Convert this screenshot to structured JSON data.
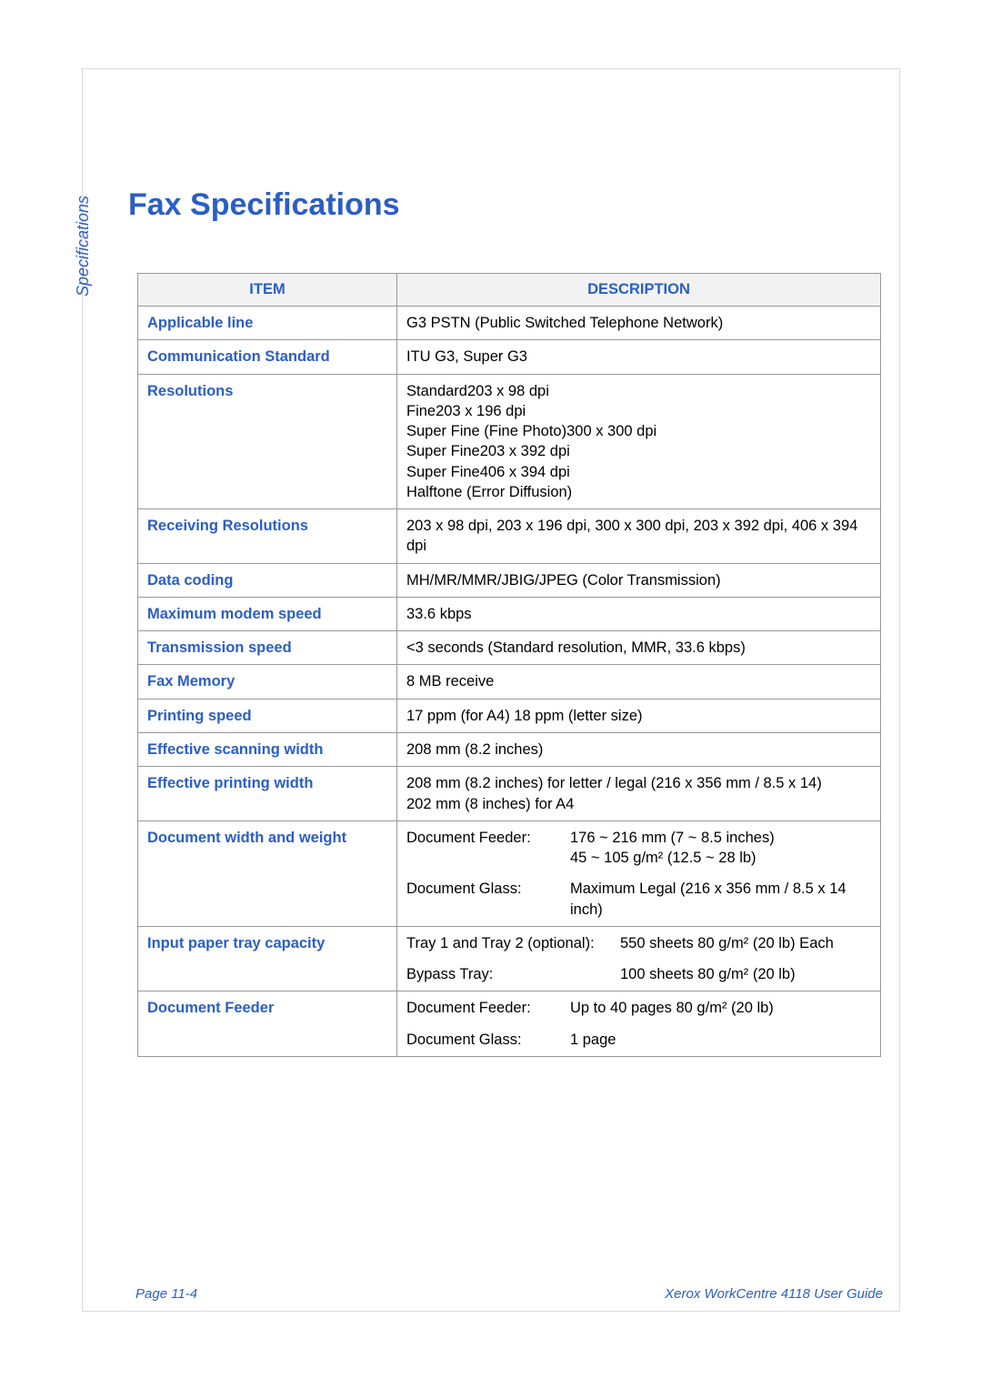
{
  "side_label": "Specifications",
  "title": "Fax Specifications",
  "columns": [
    "ITEM",
    "DESCRIPTION"
  ],
  "rows": [
    {
      "item": "Applicable line",
      "desc": "G3 PSTN (Public Switched Telephone Network)"
    },
    {
      "item": "Communication Standard",
      "desc": "ITU G3, Super G3"
    },
    {
      "item": "Resolutions",
      "desc_lines": [
        "Standard203 x 98 dpi",
        "Fine203 x 196 dpi",
        "Super Fine (Fine Photo)300 x 300 dpi",
        "Super Fine203 x 392 dpi",
        "Super Fine406 x 394 dpi",
        "Halftone (Error Diffusion)"
      ]
    },
    {
      "item": "Receiving Resolutions",
      "desc": "203 x 98 dpi, 203 x 196 dpi, 300 x 300 dpi, 203 x 392 dpi, 406 x 394 dpi"
    },
    {
      "item": "Data coding",
      "desc": "MH/MR/MMR/JBIG/JPEG (Color Transmission)"
    },
    {
      "item": "Maximum modem speed",
      "desc": "33.6 kbps"
    },
    {
      "item": "Transmission speed",
      "desc": "<3 seconds (Standard resolution, MMR, 33.6 kbps)"
    },
    {
      "item": "Fax Memory",
      "desc": "8 MB receive"
    },
    {
      "item": "Printing speed",
      "desc": "17 ppm (for A4) 18 ppm (letter size)"
    },
    {
      "item": "Effective scanning width",
      "desc": "208 mm (8.2 inches)"
    },
    {
      "item": "Effective printing width",
      "desc_lines": [
        "208 mm (8.2 inches) for letter / legal (216 x 356 mm / 8.5 x 14)",
        "202 mm (8 inches) for A4"
      ]
    },
    {
      "item": "Document width and weight",
      "sub": [
        {
          "label": "Document Feeder:",
          "value_lines": [
            "176 ~ 216 mm (7 ~ 8.5 inches)",
            "45 ~ 105 g/m² (12.5 ~ 28 lb)"
          ],
          "cls": "sublabel"
        },
        {
          "gap": true
        },
        {
          "label": "Document Glass:",
          "value": "Maximum Legal (216 x 356 mm / 8.5 x 14 inch)",
          "cls": "sublabel"
        }
      ]
    },
    {
      "item": "Input paper tray capacity",
      "sub": [
        {
          "label": "Tray 1 and Tray 2 (optional):",
          "value": "550 sheets 80 g/m² (20 lb) Each",
          "cls": "sublabel2"
        },
        {
          "gap": true
        },
        {
          "label": "Bypass Tray:",
          "value": "100 sheets 80 g/m² (20 lb)",
          "cls": "sublabel2"
        }
      ]
    },
    {
      "item": "Document Feeder",
      "sub": [
        {
          "label": "Document Feeder:",
          "value": "Up to 40 pages 80 g/m² (20 lb)",
          "cls": "sublabel"
        },
        {
          "gap": true
        },
        {
          "label": "Document Glass:",
          "value": "1 page",
          "cls": "sublabel"
        }
      ]
    }
  ],
  "footer": {
    "left": "Page 11-4",
    "right": "Xerox WorkCentre 4118 User Guide"
  },
  "colors": {
    "accent": "#2b5ec5",
    "header_bg": "#f2f2f2",
    "border": "#999999",
    "page_border": "#d9d9d9",
    "text": "#000000",
    "background": "#ffffff"
  },
  "font_sizes": {
    "title": 34,
    "side_label": 18,
    "table": 16.5,
    "footer": 15
  }
}
